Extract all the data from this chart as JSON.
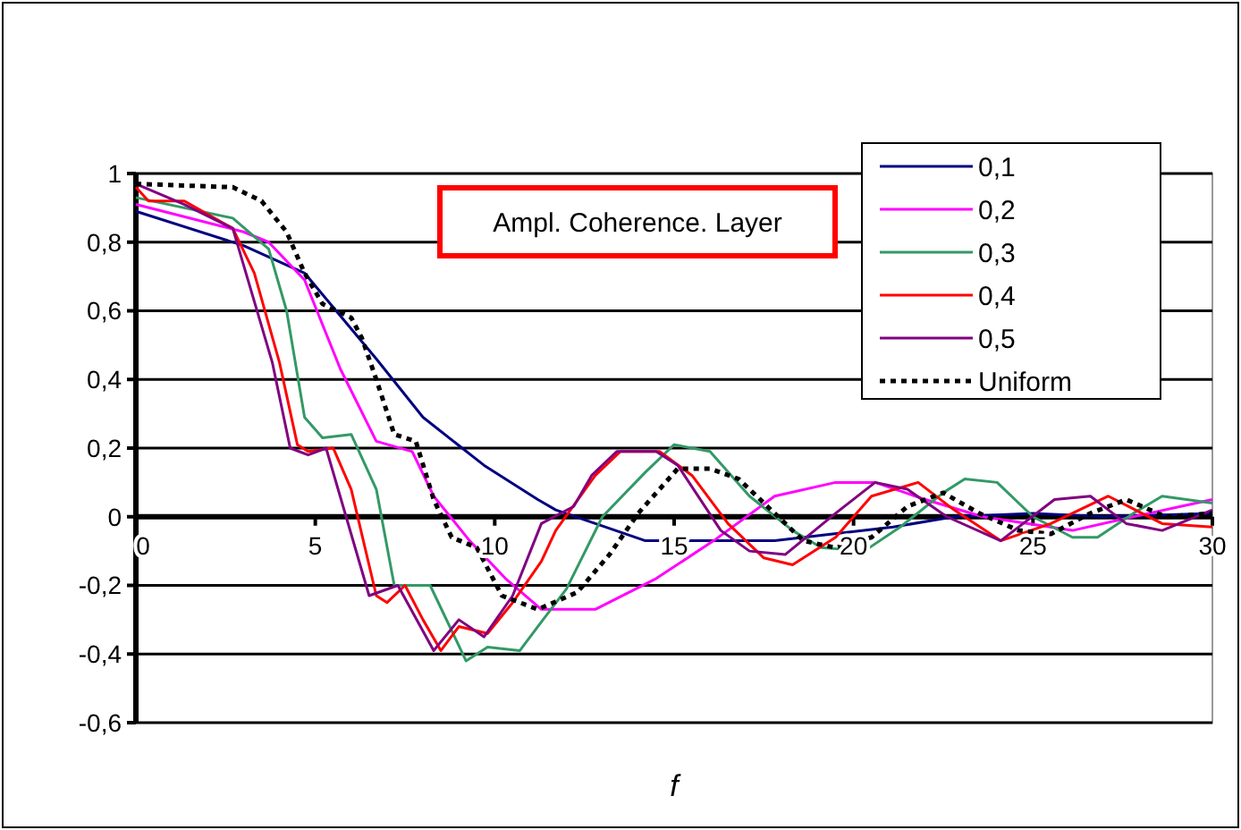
{
  "chart_data": {
    "type": "line",
    "title": "Ampl. Coherence. Layer",
    "xlabel": "f",
    "xlim": [
      0,
      30
    ],
    "ylim": [
      -0.6,
      1
    ],
    "xticks": [
      0,
      5,
      10,
      15,
      20,
      25,
      30
    ],
    "yticks": [
      {
        "value": -0.6,
        "label": "-0,6"
      },
      {
        "value": -0.4,
        "label": "-0,4"
      },
      {
        "value": -0.2,
        "label": "-0,2"
      },
      {
        "value": 0,
        "label": "0"
      },
      {
        "value": 0.2,
        "label": "0,2"
      },
      {
        "value": 0.4,
        "label": "0,4"
      },
      {
        "value": 0.6,
        "label": "0,6"
      },
      {
        "value": 0.8,
        "label": "0,8"
      },
      {
        "value": 1,
        "label": "1"
      }
    ],
    "grid": "y",
    "legend": "top right",
    "marker": "none",
    "series": [
      {
        "name": "0,1",
        "color": "#000080",
        "x": [
          0,
          3,
          4.7,
          6.7,
          8,
          9.7,
          11.2,
          11.7,
          14.2,
          17.8,
          21.1,
          22.8,
          25,
          27,
          30
        ],
        "values": [
          0.89,
          0.79,
          0.71,
          0.46,
          0.29,
          0.15,
          0.05,
          0.02,
          -0.07,
          -0.07,
          -0.03,
          0,
          0.01,
          0,
          0.01
        ]
      },
      {
        "name": "0,2",
        "color": "#ff00ff",
        "x": [
          0,
          3,
          3.7,
          4.7,
          5.7,
          6.7,
          7.7,
          8.3,
          9.3,
          10.3,
          11.3,
          12.8,
          14.5,
          16.1,
          17.8,
          19.5,
          20.6,
          22,
          23.6,
          26.1,
          27.8,
          30
        ],
        "values": [
          0.91,
          0.83,
          0.8,
          0.69,
          0.43,
          0.22,
          0.19,
          0.06,
          -0.07,
          -0.18,
          -0.27,
          -0.27,
          -0.18,
          -0.07,
          0.06,
          0.1,
          0.1,
          0.05,
          0,
          -0.04,
          0,
          0.05
        ]
      },
      {
        "name": "0,3",
        "color": "#339966",
        "x": [
          0,
          2.7,
          3.7,
          4.2,
          4.7,
          5.2,
          6,
          6.7,
          7.2,
          8.2,
          9.2,
          9.8,
          10.7,
          11.2,
          12,
          13,
          14.2,
          15,
          16,
          17.1,
          18.3,
          19.1,
          20.3,
          21.3,
          22.5,
          23.1,
          24,
          25,
          26.1,
          26.8,
          27.8,
          28.6,
          30
        ],
        "values": [
          0.93,
          0.87,
          0.78,
          0.6,
          0.29,
          0.23,
          0.24,
          0.08,
          -0.2,
          -0.2,
          -0.42,
          -0.38,
          -0.39,
          -0.32,
          -0.21,
          0,
          0.13,
          0.21,
          0.19,
          0.06,
          -0.04,
          -0.09,
          -0.1,
          -0.03,
          0.07,
          0.11,
          0.1,
          0,
          -0.06,
          -0.06,
          0.01,
          0.06,
          0.04
        ]
      },
      {
        "name": "0,4",
        "color": "#ff0000",
        "x": [
          0,
          0.35,
          1.35,
          2.7,
          3.3,
          4,
          4.5,
          4.8,
          5.5,
          6,
          6.7,
          7,
          7.5,
          8,
          8.5,
          9,
          9.8,
          10.5,
          11.3,
          11.7,
          12.8,
          13.5,
          14.6,
          15.5,
          16.5,
          17.5,
          18.3,
          19.5,
          20.5,
          21.8,
          22.8,
          24.1,
          25.5,
          27.1,
          28.6,
          30
        ],
        "values": [
          0.96,
          0.92,
          0.92,
          0.84,
          0.71,
          0.45,
          0.21,
          0.19,
          0.2,
          0.08,
          -0.23,
          -0.25,
          -0.2,
          -0.3,
          -0.39,
          -0.32,
          -0.34,
          -0.25,
          -0.13,
          -0.04,
          0.12,
          0.19,
          0.19,
          0.12,
          -0.02,
          -0.12,
          -0.14,
          -0.06,
          0.06,
          0.1,
          0.02,
          -0.07,
          -0.02,
          0.06,
          -0.02,
          -0.03
        ]
      },
      {
        "name": "0,5",
        "color": "#800080",
        "x": [
          0,
          1.35,
          2.7,
          3.8,
          4.3,
          4.8,
          5.3,
          6.5,
          7.3,
          8.3,
          9,
          9.7,
          10.5,
          11.3,
          12.2,
          12.7,
          13.4,
          14.5,
          15.1,
          16.3,
          17.1,
          18.1,
          19.5,
          20.6,
          21.5,
          22.6,
          24.1,
          25.6,
          26.6,
          27.6,
          28.6,
          30
        ],
        "values": [
          0.97,
          0.91,
          0.84,
          0.45,
          0.2,
          0.18,
          0.2,
          -0.23,
          -0.2,
          -0.39,
          -0.3,
          -0.35,
          -0.23,
          -0.02,
          0.03,
          0.12,
          0.19,
          0.19,
          0.15,
          -0.04,
          -0.1,
          -0.11,
          0.01,
          0.1,
          0.08,
          0,
          -0.07,
          0.05,
          0.06,
          -0.02,
          -0.04,
          0.02
        ]
      },
      {
        "name": "Uniform",
        "color": "#000000",
        "line_style": "dotted",
        "x": [
          0,
          2.7,
          3.5,
          4.2,
          4.7,
          5.2,
          6,
          6.3,
          6.7,
          7.2,
          7.8,
          8.3,
          8.8,
          9.5,
          10.2,
          11.2,
          12.3,
          13.2,
          14,
          15.1,
          16,
          16.8,
          17.6,
          18.6,
          19.5,
          20.5,
          21.5,
          22.5,
          23.5,
          24.6,
          25.5,
          26.6,
          27.6,
          28.7,
          30
        ],
        "values": [
          0.97,
          0.96,
          0.92,
          0.83,
          0.71,
          0.62,
          0.58,
          0.52,
          0.4,
          0.24,
          0.22,
          0.05,
          -0.06,
          -0.09,
          -0.23,
          -0.27,
          -0.22,
          -0.11,
          0.01,
          0.14,
          0.14,
          0.11,
          0.03,
          -0.07,
          -0.09,
          -0.06,
          0.03,
          0.07,
          0.01,
          -0.04,
          -0.05,
          0.01,
          0.05,
          0,
          0.01
        ]
      }
    ]
  }
}
